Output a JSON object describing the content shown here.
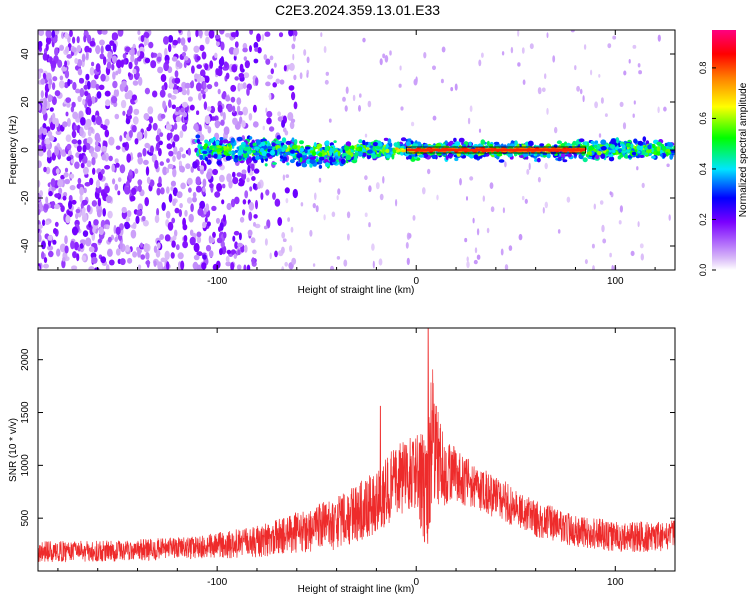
{
  "title": "C2E3.2024.359.13.01.E33",
  "chart_data": [
    {
      "type": "heatmap",
      "xlabel": "Height of straight line (km)",
      "ylabel": "Frequency (Hz)",
      "xlim": [
        -190,
        130
      ],
      "ylim": [
        -50,
        50
      ],
      "xticks": [
        -100,
        0,
        100
      ],
      "yticks": [
        -40,
        -20,
        0,
        20,
        40
      ],
      "colorbar": {
        "label": "Normalized spectral amplitude",
        "range": [
          0,
          0.95
        ],
        "ticks": [
          "0.0",
          "0.2",
          "0.4",
          "0.6",
          "0.8"
        ],
        "colors": [
          "#ffffff",
          "#d8b8f8",
          "#7a00ff",
          "#0000ff",
          "#00e5ff",
          "#00ff00",
          "#ffff00",
          "#ff8000",
          "#ff0000",
          "#ff0080"
        ]
      },
      "features": [
        {
          "x_range": [
            -190,
            -75
          ],
          "f_range": [
            -50,
            50
          ],
          "amplitude": 0.1,
          "note": "broadband noise"
        },
        {
          "x_range": [
            -110,
            130
          ],
          "f_center": 0,
          "f_halfwidth": 5,
          "amplitude": 0.45
        },
        {
          "x_range": [
            0,
            85
          ],
          "f_center": 0,
          "f_halfwidth": 1,
          "amplitude": 0.9
        }
      ]
    },
    {
      "type": "line",
      "xlabel": "Height of straight line (km)",
      "ylabel": "SNR (10 * v/v)",
      "xlim": [
        -190,
        130
      ],
      "ylim": [
        0,
        2300
      ],
      "xticks": [
        -100,
        0,
        100
      ],
      "yticks": [
        500,
        1000,
        1500,
        2000
      ],
      "color": "#ee2b2b",
      "envelope": {
        "x": [
          -190,
          -150,
          -110,
          -80,
          -60,
          -40,
          -20,
          -10,
          0,
          5,
          8,
          12,
          20,
          40,
          60,
          80,
          100,
          130
        ],
        "mean": [
          180,
          190,
          220,
          280,
          360,
          450,
          650,
          850,
          950,
          700,
          1250,
          1000,
          900,
          700,
          500,
          380,
          330,
          330
        ],
        "spread": [
          100,
          100,
          110,
          150,
          200,
          250,
          300,
          350,
          350,
          600,
          700,
          400,
          250,
          200,
          180,
          150,
          150,
          150
        ]
      },
      "peaks": [
        {
          "x": 6,
          "y": 2300
        },
        {
          "x": 10,
          "y": 1560
        },
        {
          "x": -18,
          "y": 1560
        }
      ]
    }
  ]
}
